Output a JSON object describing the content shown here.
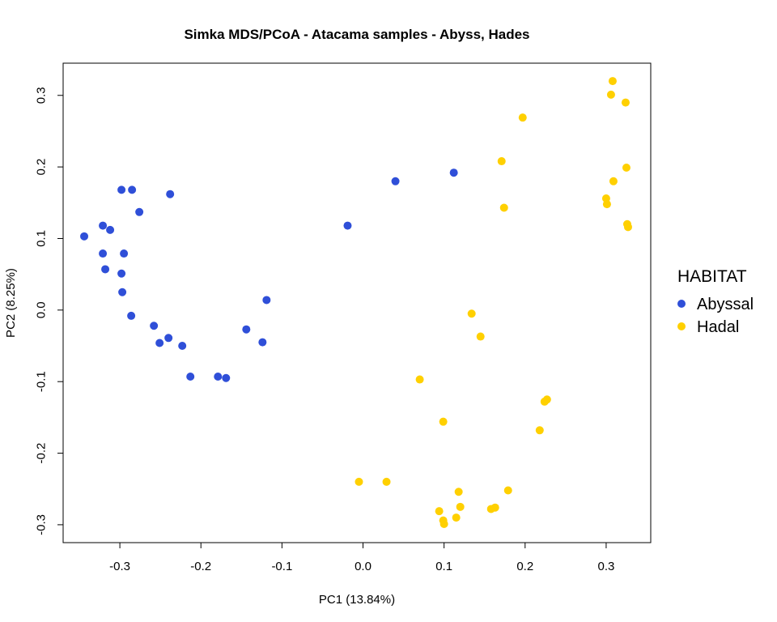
{
  "chart_data": {
    "type": "scatter",
    "title": "Simka MDS/PCoA - Atacama samples - Abyss, Hades",
    "xlabel": "PC1 (13.84%)",
    "ylabel": "PC2 (8.25%)",
    "xlim": [
      -0.37,
      0.355
    ],
    "ylim": [
      -0.325,
      0.345
    ],
    "xticks": [
      -0.3,
      -0.2,
      -0.1,
      0.0,
      0.1,
      0.2,
      0.3
    ],
    "xtick_labels": [
      "-0.3",
      "-0.2",
      "-0.1",
      "0.0",
      "0.1",
      "0.2",
      "0.3"
    ],
    "yticks": [
      -0.3,
      -0.2,
      -0.1,
      0.0,
      0.1,
      0.2,
      0.3
    ],
    "ytick_labels": [
      "-0.3",
      "-0.2",
      "-0.1",
      "0.0",
      "0.1",
      "0.2",
      "0.3"
    ],
    "grid": false,
    "legend": {
      "title": "HABITAT",
      "position": "right"
    },
    "series": [
      {
        "name": "Abyssal",
        "color": "#2f4fd8",
        "points": [
          [
            -0.344,
            0.103
          ],
          [
            -0.321,
            0.118
          ],
          [
            -0.312,
            0.112
          ],
          [
            -0.321,
            0.079
          ],
          [
            -0.318,
            0.057
          ],
          [
            -0.298,
            0.168
          ],
          [
            -0.285,
            0.168
          ],
          [
            -0.295,
            0.079
          ],
          [
            -0.298,
            0.051
          ],
          [
            -0.297,
            0.025
          ],
          [
            -0.276,
            0.137
          ],
          [
            -0.238,
            0.162
          ],
          [
            -0.286,
            -0.008
          ],
          [
            -0.258,
            -0.022
          ],
          [
            -0.251,
            -0.046
          ],
          [
            -0.24,
            -0.039
          ],
          [
            -0.223,
            -0.05
          ],
          [
            -0.213,
            -0.093
          ],
          [
            -0.179,
            -0.093
          ],
          [
            -0.169,
            -0.095
          ],
          [
            -0.144,
            -0.027
          ],
          [
            -0.124,
            -0.045
          ],
          [
            -0.119,
            0.014
          ],
          [
            -0.019,
            0.118
          ],
          [
            0.04,
            0.18
          ],
          [
            0.112,
            0.192
          ]
        ]
      },
      {
        "name": "Hadal",
        "color": "#ffd000",
        "points": [
          [
            0.308,
            0.32
          ],
          [
            0.306,
            0.301
          ],
          [
            0.324,
            0.29
          ],
          [
            0.197,
            0.269
          ],
          [
            0.171,
            0.208
          ],
          [
            0.325,
            0.199
          ],
          [
            0.309,
            0.18
          ],
          [
            0.3,
            0.156
          ],
          [
            0.301,
            0.148
          ],
          [
            0.174,
            0.143
          ],
          [
            0.326,
            0.12
          ],
          [
            0.327,
            0.116
          ],
          [
            0.134,
            -0.005
          ],
          [
            0.145,
            -0.037
          ],
          [
            0.07,
            -0.097
          ],
          [
            0.227,
            -0.125
          ],
          [
            0.224,
            -0.128
          ],
          [
            0.099,
            -0.156
          ],
          [
            0.218,
            -0.168
          ],
          [
            -0.005,
            -0.24
          ],
          [
            0.029,
            -0.24
          ],
          [
            0.118,
            -0.254
          ],
          [
            0.179,
            -0.252
          ],
          [
            0.12,
            -0.275
          ],
          [
            0.094,
            -0.281
          ],
          [
            0.163,
            -0.276
          ],
          [
            0.158,
            -0.278
          ],
          [
            0.115,
            -0.29
          ],
          [
            0.099,
            -0.294
          ],
          [
            0.1,
            -0.299
          ]
        ]
      }
    ]
  }
}
